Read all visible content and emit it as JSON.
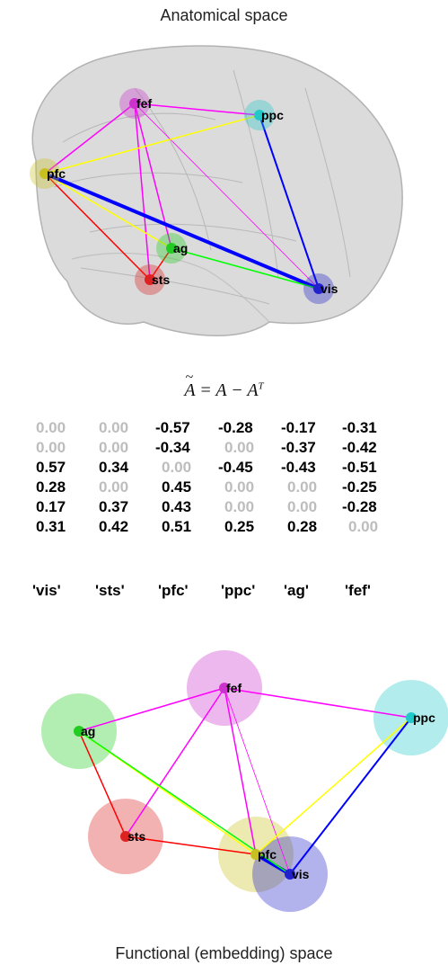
{
  "top_title": "Anatomical space",
  "bottom_title": "Functional (embedding) space",
  "equation": {
    "lhs": "A",
    "rhs1": "A",
    "rhs2": "A",
    "sup": "T"
  },
  "matrix": {
    "rows": [
      [
        "0.00",
        "0.00",
        "-0.57",
        "-0.28",
        "-0.17",
        "-0.31"
      ],
      [
        "0.00",
        "0.00",
        "-0.34",
        "0.00",
        "-0.37",
        "-0.42"
      ],
      [
        "0.57",
        "0.34",
        "0.00",
        "-0.45",
        "-0.43",
        "-0.51"
      ],
      [
        "0.28",
        "0.00",
        "0.45",
        "0.00",
        "0.00",
        "-0.25"
      ],
      [
        "0.17",
        "0.37",
        "0.43",
        "0.00",
        "0.00",
        "-0.28"
      ],
      [
        "0.31",
        "0.42",
        "0.51",
        "0.25",
        "0.28",
        "0.00"
      ]
    ],
    "labels": [
      "'vis'",
      "'sts'",
      "'pfc'",
      "'ppc'",
      "'ag'",
      "'fef'"
    ]
  },
  "nodes": {
    "fef": {
      "label": "fef",
      "color": "#cc33cc"
    },
    "ppc": {
      "label": "ppc",
      "color": "#22c8c8"
    },
    "pfc": {
      "label": "pfc",
      "color": "#c8c020"
    },
    "ag": {
      "label": "ag",
      "color": "#22cc22"
    },
    "sts": {
      "label": "sts",
      "color": "#dd2222"
    },
    "vis": {
      "label": "vis",
      "color": "#2222cc"
    }
  },
  "edge_colors": {
    "magenta": "#ff00ff",
    "yellow": "#ffff00",
    "blue": "#0000ff",
    "red": "#ff0000",
    "green": "#00ff00"
  }
}
